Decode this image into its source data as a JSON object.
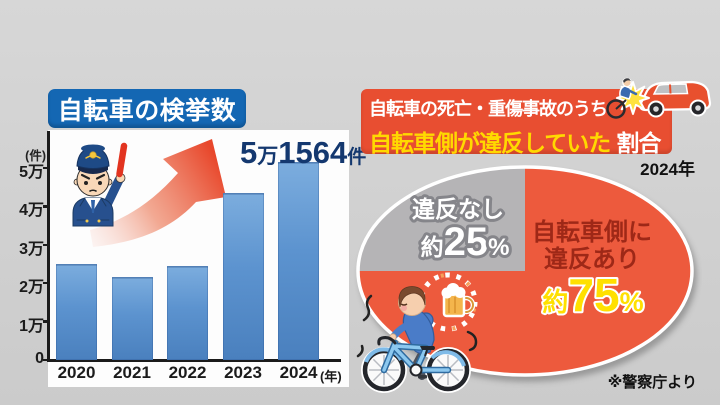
{
  "colors": {
    "background": "#d1d1d1",
    "bar_title_bg": "#1467b3",
    "bar_fill": "#5c93cf",
    "annotation_text": "#14386f",
    "arrow": "#e8472b",
    "pie_title_bg": "#e84e31",
    "pie_title_highlight": "#ffd900",
    "violation_slice": "#ed5a3d",
    "no_violation_slice": "#b5b4b6",
    "violation_text": "#9e2817",
    "pct_yellow": "#ffe000"
  },
  "chart_data": [
    {
      "type": "bar",
      "title": "自転車の検挙数",
      "y_unit": "(件)",
      "x_unit": "(年)",
      "categories": [
        "2020",
        "2021",
        "2022",
        "2023",
        "2024"
      ],
      "values": [
        25000,
        21500,
        24500,
        43500,
        51564
      ],
      "y_ticks": [
        "0",
        "1万",
        "2万",
        "3万",
        "4万",
        "5万"
      ],
      "ylim": [
        0,
        50000
      ],
      "annotation": {
        "v1": "5",
        "u1": "万",
        "v2": "1564",
        "u2": "件"
      }
    },
    {
      "type": "pie",
      "title_line1": "自転車の死亡・重傷事故のうち",
      "title_line2_highlight": "自転車側が違反していた",
      "title_line2_rest": "割合",
      "year": "2024年",
      "slices": [
        {
          "label_lines": [
            "違反なし"
          ],
          "value_pct": 25,
          "display": {
            "prefix": "約",
            "number": "25",
            "suffix": "%"
          },
          "color": "#b5b4b6"
        },
        {
          "label_lines": [
            "自転車側に",
            "違反あり"
          ],
          "value_pct": 75,
          "display": {
            "prefix": "約",
            "number": "75",
            "suffix": "%"
          },
          "color": "#ed5a3d"
        }
      ],
      "source": "※警察庁より"
    }
  ]
}
